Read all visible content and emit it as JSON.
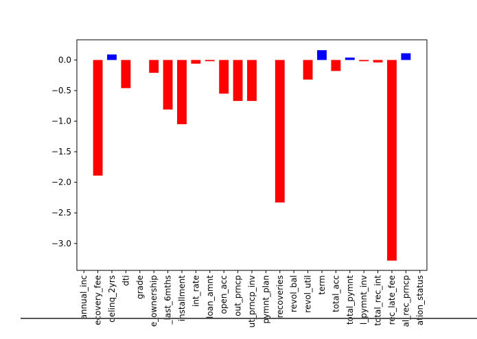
{
  "chart_data": {
    "type": "bar",
    "title": "",
    "xlabel": "",
    "ylabel": "",
    "categories": [
      "annual_inc",
      "ecovery_fee",
      "delinq_2yrs",
      "dti",
      "grade",
      "e_ownership",
      "_last_6mths",
      "installment",
      "int_rate",
      "loan_amnt",
      "open_acc",
      "out_prncp",
      "ut_prncp_inv",
      "pymnt_plan",
      "recoveries",
      "revol_bal",
      "revol_util",
      "term",
      "total_acc",
      "total_pymnt",
      "l_pymnt_inv",
      "total_rec_int",
      "rec_late_fee",
      "al_rec_prncp",
      "ation_status"
    ],
    "values": [
      0.0,
      -1.89,
      0.09,
      -0.46,
      0.0,
      -0.21,
      -0.81,
      -1.05,
      -0.06,
      -0.02,
      -0.55,
      -0.67,
      -0.67,
      0.0,
      -2.33,
      0.0,
      -0.32,
      0.16,
      -0.18,
      0.04,
      -0.02,
      -0.04,
      -3.28,
      0.11,
      0.0
    ],
    "positive_color": "#0000ff",
    "negative_color": "#ff0000",
    "ylim": [
      -3.44,
      0.33
    ],
    "yticks": [
      0.0,
      -0.5,
      -1.0,
      -1.5,
      -2.0,
      -2.5,
      -3.0
    ],
    "ytick_labels": [
      "0.0",
      "−0.5",
      "−1.0",
      "−1.5",
      "−2.0",
      "−2.5",
      "−3.0"
    ],
    "grid": false,
    "legend": "none"
  }
}
